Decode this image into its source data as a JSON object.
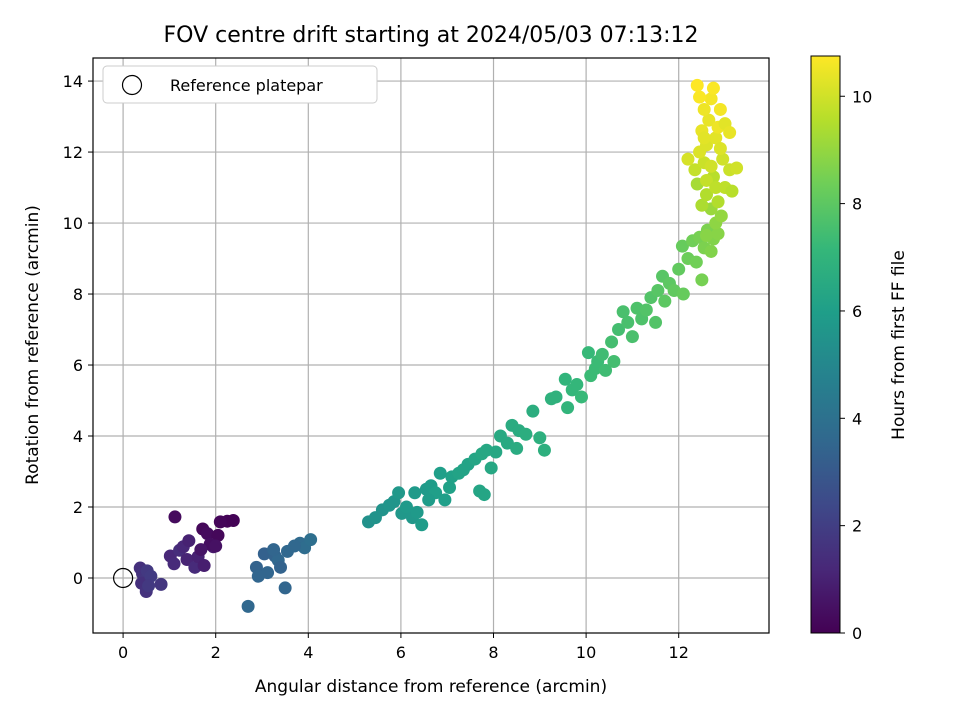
{
  "chart_data": {
    "type": "scatter",
    "title": "FOV centre drift starting at 2024/05/03 07:13:12",
    "xlabel": "Angular distance from reference (arcmin)",
    "ylabel": "Rotation from reference (arcmin)",
    "xlim": [
      -0.65,
      13.95
    ],
    "ylim": [
      -1.55,
      14.65
    ],
    "xticks": [
      0,
      2,
      4,
      6,
      8,
      10,
      12
    ],
    "yticks": [
      0,
      2,
      4,
      6,
      8,
      10,
      12,
      14
    ],
    "grid": true,
    "legend": {
      "position": "top-left",
      "entries": [
        "Reference platepar"
      ]
    },
    "reference_point": {
      "x": 0,
      "y": 0,
      "marker": "hollow-circle",
      "color": "#000000"
    },
    "colorbar": {
      "label": "Hours from first FF file",
      "range": [
        0,
        10.75
      ],
      "ticks": [
        0,
        2,
        4,
        6,
        8,
        10
      ],
      "colormap": "viridis",
      "stops": [
        "#440154",
        "#482878",
        "#3e4989",
        "#31688e",
        "#26828e",
        "#1f9e89",
        "#35b779",
        "#6ece58",
        "#b5de2b",
        "#fde725"
      ]
    },
    "series": [
      {
        "color_by": "hours",
        "points": [
          [
            0.37,
            0.28,
            1.5
          ],
          [
            0.42,
            0.12,
            1.6
          ],
          [
            0.48,
            -0.05,
            1.7
          ],
          [
            0.4,
            -0.15,
            1.5
          ],
          [
            0.52,
            0.2,
            1.8
          ],
          [
            0.6,
            0.05,
            1.9
          ],
          [
            0.5,
            -0.38,
            1.6
          ],
          [
            0.82,
            -0.18,
            1.7
          ],
          [
            0.55,
            -0.22,
            1.8
          ],
          [
            1.02,
            0.62,
            1.2
          ],
          [
            1.1,
            0.4,
            1.3
          ],
          [
            1.22,
            0.78,
            1.4
          ],
          [
            1.38,
            0.52,
            1.1
          ],
          [
            1.3,
            0.88,
            1.2
          ],
          [
            1.55,
            0.3,
            1.3
          ],
          [
            1.62,
            0.6,
            1.0
          ],
          [
            1.75,
            0.35,
            0.9
          ],
          [
            1.42,
            1.05,
            1.0
          ],
          [
            1.95,
            0.88,
            0.8
          ],
          [
            1.12,
            1.72,
            0.3
          ],
          [
            1.72,
            1.38,
            0.2
          ],
          [
            1.82,
            1.25,
            0.3
          ],
          [
            2.05,
            1.2,
            0.2
          ],
          [
            2.25,
            1.6,
            0.1
          ],
          [
            2.38,
            1.62,
            0.05
          ],
          [
            2.1,
            1.58,
            0.15
          ],
          [
            1.88,
            0.95,
            0.4
          ],
          [
            2.0,
            0.9,
            0.5
          ],
          [
            1.68,
            0.8,
            0.6
          ],
          [
            2.7,
            -0.8,
            3.6
          ],
          [
            2.88,
            0.3,
            3.4
          ],
          [
            2.92,
            0.05,
            3.5
          ],
          [
            3.05,
            0.68,
            3.3
          ],
          [
            3.12,
            0.15,
            3.5
          ],
          [
            3.28,
            0.62,
            3.4
          ],
          [
            3.35,
            0.5,
            3.6
          ],
          [
            3.4,
            0.3,
            3.4
          ],
          [
            3.5,
            -0.28,
            3.5
          ],
          [
            3.55,
            0.75,
            3.6
          ],
          [
            3.82,
            0.98,
            3.7
          ],
          [
            3.92,
            0.85,
            3.8
          ],
          [
            4.05,
            1.08,
            3.9
          ],
          [
            3.25,
            0.8,
            3.5
          ],
          [
            3.7,
            0.9,
            3.6
          ],
          [
            5.3,
            1.58,
            5.4
          ],
          [
            5.45,
            1.7,
            5.5
          ],
          [
            5.6,
            1.92,
            5.5
          ],
          [
            5.75,
            2.05,
            5.6
          ],
          [
            5.85,
            2.15,
            5.6
          ],
          [
            5.95,
            2.4,
            5.7
          ],
          [
            6.02,
            1.82,
            5.7
          ],
          [
            6.12,
            2.0,
            5.8
          ],
          [
            6.25,
            1.7,
            5.7
          ],
          [
            6.35,
            1.85,
            5.8
          ],
          [
            6.45,
            1.5,
            5.9
          ],
          [
            6.55,
            2.5,
            5.8
          ],
          [
            6.65,
            2.6,
            5.9
          ],
          [
            6.75,
            2.4,
            6.0
          ],
          [
            6.85,
            2.95,
            6.0
          ],
          [
            6.95,
            2.2,
            6.0
          ],
          [
            7.05,
            2.55,
            6.1
          ],
          [
            7.1,
            2.85,
            6.1
          ],
          [
            7.25,
            2.95,
            6.2
          ],
          [
            7.45,
            3.2,
            6.2
          ],
          [
            7.6,
            3.35,
            6.3
          ],
          [
            7.7,
            2.45,
            6.3
          ],
          [
            7.8,
            2.35,
            6.3
          ],
          [
            7.75,
            3.5,
            6.4
          ],
          [
            7.85,
            3.6,
            6.4
          ],
          [
            7.95,
            3.1,
            6.4
          ],
          [
            8.05,
            3.55,
            6.4
          ],
          [
            6.3,
            2.4,
            5.8
          ],
          [
            6.6,
            2.2,
            5.9
          ],
          [
            7.35,
            3.05,
            6.2
          ],
          [
            8.15,
            4.0,
            6.5
          ],
          [
            8.3,
            3.8,
            6.5
          ],
          [
            8.4,
            4.3,
            6.6
          ],
          [
            8.5,
            3.65,
            6.6
          ],
          [
            8.55,
            4.15,
            6.6
          ],
          [
            8.7,
            4.05,
            6.7
          ],
          [
            8.85,
            4.7,
            6.7
          ],
          [
            9.0,
            3.95,
            6.8
          ],
          [
            9.1,
            3.6,
            6.8
          ],
          [
            9.25,
            5.05,
            6.9
          ],
          [
            9.35,
            5.1,
            6.9
          ],
          [
            9.55,
            5.6,
            7.0
          ],
          [
            9.6,
            4.8,
            7.0
          ],
          [
            9.7,
            5.3,
            7.1
          ],
          [
            9.8,
            5.45,
            7.1
          ],
          [
            9.9,
            5.1,
            7.2
          ],
          [
            10.05,
            6.35,
            7.2
          ],
          [
            10.1,
            5.7,
            7.3
          ],
          [
            10.2,
            5.9,
            7.3
          ],
          [
            10.25,
            6.1,
            7.3
          ],
          [
            10.35,
            6.3,
            7.4
          ],
          [
            10.42,
            5.85,
            7.4
          ],
          [
            10.55,
            6.65,
            7.5
          ],
          [
            10.6,
            6.1,
            7.5
          ],
          [
            10.7,
            7.0,
            7.5
          ],
          [
            10.8,
            7.5,
            7.6
          ],
          [
            10.9,
            7.2,
            7.6
          ],
          [
            11.0,
            6.8,
            7.6
          ],
          [
            11.1,
            7.6,
            7.7
          ],
          [
            11.2,
            7.3,
            7.7
          ],
          [
            11.3,
            7.55,
            7.8
          ],
          [
            11.4,
            7.9,
            7.8
          ],
          [
            11.5,
            7.2,
            7.8
          ],
          [
            11.55,
            8.1,
            7.9
          ],
          [
            11.65,
            8.5,
            7.9
          ],
          [
            11.7,
            7.8,
            8.0
          ],
          [
            11.8,
            8.3,
            8.0
          ],
          [
            11.9,
            8.1,
            8.1
          ],
          [
            12.0,
            8.7,
            8.1
          ],
          [
            12.08,
            9.35,
            8.2
          ],
          [
            12.1,
            8.0,
            8.2
          ],
          [
            12.2,
            9.0,
            8.3
          ],
          [
            12.3,
            9.5,
            8.4
          ],
          [
            12.38,
            8.9,
            8.4
          ],
          [
            12.45,
            9.6,
            8.5
          ],
          [
            12.5,
            8.4,
            8.5
          ],
          [
            12.55,
            9.3,
            8.6
          ],
          [
            12.62,
            9.8,
            8.6
          ],
          [
            12.7,
            9.2,
            8.7
          ],
          [
            12.75,
            9.55,
            8.7
          ],
          [
            12.85,
            9.7,
            8.8
          ],
          [
            12.6,
            9.65,
            8.8
          ],
          [
            12.8,
            10.0,
            8.9
          ],
          [
            12.92,
            10.2,
            9.0
          ],
          [
            12.7,
            10.4,
            9.1
          ],
          [
            12.4,
            11.1,
            9.3
          ],
          [
            12.5,
            10.5,
            9.4
          ],
          [
            12.6,
            10.8,
            9.5
          ],
          [
            12.75,
            11.3,
            9.6
          ],
          [
            12.85,
            10.6,
            9.5
          ],
          [
            13.0,
            11.0,
            9.7
          ],
          [
            13.15,
            10.9,
            9.6
          ],
          [
            12.35,
            11.5,
            9.8
          ],
          [
            12.55,
            11.7,
            9.9
          ],
          [
            12.7,
            11.6,
            10.0
          ],
          [
            12.95,
            11.8,
            10.0
          ],
          [
            13.1,
            11.5,
            9.9
          ],
          [
            13.25,
            11.55,
            10.0
          ],
          [
            12.2,
            11.8,
            10.1
          ],
          [
            12.45,
            12.0,
            10.2
          ],
          [
            12.6,
            12.2,
            10.2
          ],
          [
            12.8,
            12.4,
            10.3
          ],
          [
            12.5,
            12.6,
            10.4
          ],
          [
            12.65,
            12.9,
            10.4
          ],
          [
            12.85,
            12.7,
            10.5
          ],
          [
            13.0,
            12.8,
            10.3
          ],
          [
            13.1,
            12.55,
            10.4
          ],
          [
            12.55,
            13.2,
            10.5
          ],
          [
            12.7,
            13.5,
            10.6
          ],
          [
            12.9,
            13.2,
            10.6
          ],
          [
            12.45,
            13.55,
            10.7
          ],
          [
            12.4,
            13.88,
            10.75
          ],
          [
            12.75,
            13.8,
            10.7
          ],
          [
            12.55,
            12.4,
            10.3
          ],
          [
            12.9,
            12.1,
            10.2
          ],
          [
            12.6,
            11.2,
            9.8
          ],
          [
            12.8,
            11.0,
            9.7
          ]
        ]
      }
    ]
  }
}
